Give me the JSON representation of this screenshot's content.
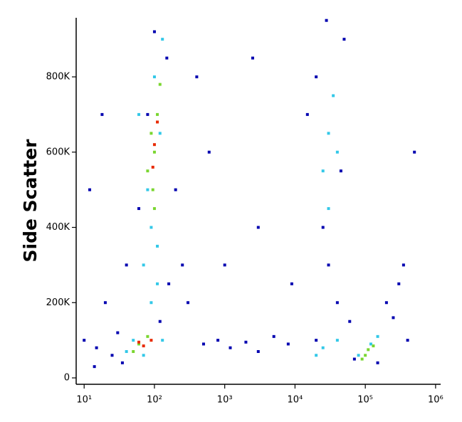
{
  "chart_data": {
    "type": "scatter",
    "ylabel": "Side Scatter",
    "xscale": "log",
    "xlim": [
      7.7,
      1180000
    ],
    "xticks": [
      {
        "value": 10,
        "label": "10¹"
      },
      {
        "value": 100,
        "label": "10²"
      },
      {
        "value": 1000,
        "label": "10³"
      },
      {
        "value": 10000,
        "label": "10⁴"
      },
      {
        "value": 100000,
        "label": "10⁵"
      },
      {
        "value": 1000000,
        "label": "10⁶"
      }
    ],
    "ylim": [
      -17000,
      957000
    ],
    "yticks": [
      0,
      {
        "value": 200000,
        "label": "200K"
      },
      {
        "value": 400000,
        "label": "400K"
      },
      {
        "value": 600000,
        "label": "600K"
      },
      {
        "value": 800000,
        "label": "800K"
      }
    ],
    "series": [
      {
        "color": "#0000b0",
        "x": [
          15,
          25,
          30,
          40,
          60,
          80,
          150,
          200,
          250,
          300,
          500,
          800,
          1200,
          2000,
          3000,
          5000,
          8000,
          20000,
          25000,
          30000,
          40000,
          60000,
          15000,
          50000,
          300000,
          200000,
          400000,
          12,
          18,
          20,
          35,
          100,
          120,
          160,
          1000,
          600,
          3000,
          20000,
          70000,
          150000,
          250000,
          350000,
          500000,
          45000,
          28000,
          10,
          14,
          400,
          2500,
          9000
        ],
        "values": [
          80000,
          60000,
          120000,
          300000,
          450000,
          700000,
          850000,
          500000,
          300000,
          200000,
          90000,
          100000,
          80000,
          95000,
          70000,
          110000,
          90000,
          800000,
          400000,
          300000,
          200000,
          150000,
          700000,
          900000,
          250000,
          200000,
          100000,
          500000,
          700000,
          200000,
          40000,
          920000,
          150000,
          250000,
          300000,
          600000,
          400000,
          100000,
          50000,
          40000,
          160000,
          300000,
          600000,
          550000,
          950000,
          100000,
          30000,
          800000,
          850000,
          250000
        ]
      },
      {
        "color": "#33c8e8",
        "x": [
          50,
          70,
          90,
          110,
          100,
          130,
          80,
          90,
          30000,
          25000,
          40000,
          35000,
          30000,
          25000,
          40000,
          20000,
          80000,
          120000,
          150000,
          60,
          120,
          70,
          110,
          40,
          130
        ],
        "values": [
          100000,
          60000,
          200000,
          350000,
          800000,
          900000,
          500000,
          400000,
          650000,
          550000,
          600000,
          750000,
          450000,
          80000,
          100000,
          60000,
          60000,
          90000,
          110000,
          700000,
          650000,
          300000,
          250000,
          70000,
          100000
        ]
      },
      {
        "color": "#7ad630",
        "x": [
          60,
          80,
          50,
          100,
          90,
          110,
          80,
          100,
          120,
          95,
          100000,
          110000,
          90000,
          130000
        ],
        "values": [
          90000,
          110000,
          70000,
          600000,
          650000,
          700000,
          550000,
          450000,
          780000,
          500000,
          60000,
          75000,
          50000,
          85000
        ]
      },
      {
        "color": "#e82a00",
        "x": [
          60,
          70,
          90,
          100,
          110,
          95
        ],
        "values": [
          95000,
          85000,
          100000,
          620000,
          680000,
          560000
        ]
      }
    ]
  }
}
